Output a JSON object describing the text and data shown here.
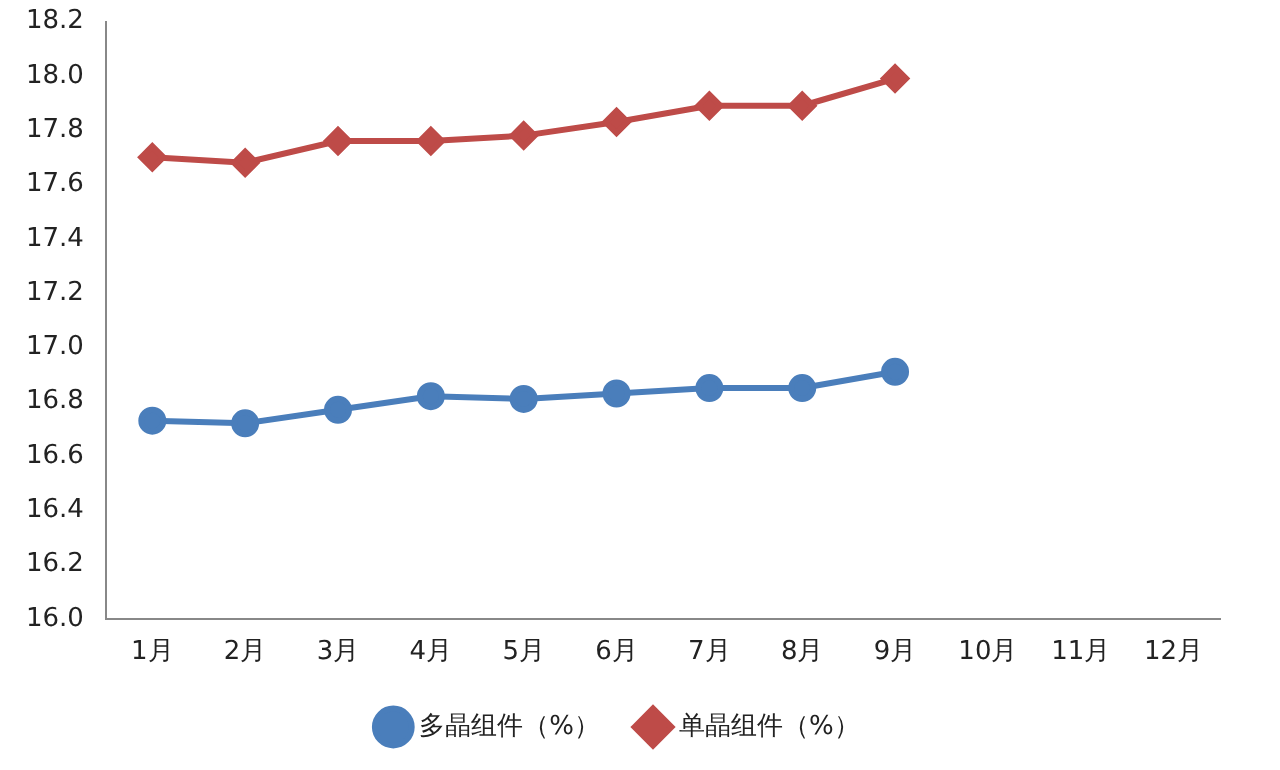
{
  "chart_data": {
    "type": "line",
    "categories": [
      "1月",
      "2月",
      "3月",
      "4月",
      "5月",
      "6月",
      "7月",
      "8月",
      "9月",
      "10月",
      "11月",
      "12月"
    ],
    "series": [
      {
        "name": "多晶组件（%）",
        "color": "#4a7ebb",
        "marker": "circle",
        "values": [
          16.73,
          16.72,
          16.77,
          16.82,
          16.81,
          16.83,
          16.85,
          16.85,
          16.91,
          null,
          null,
          null
        ]
      },
      {
        "name": "单晶组件（%）",
        "color": "#be4b48",
        "marker": "diamond",
        "values": [
          17.7,
          17.68,
          17.76,
          17.76,
          17.78,
          17.83,
          17.89,
          17.89,
          17.99,
          null,
          null,
          null
        ]
      }
    ],
    "ylim": [
      16.0,
      18.2
    ],
    "yticks": [
      {
        "value": 16,
        "label": "16.0"
      },
      16.2,
      16.4,
      16.6,
      16.8,
      {
        "value": 17,
        "label": "17.0"
      },
      17.2,
      17.4,
      17.6,
      17.8,
      {
        "value": 18,
        "label": "18.0"
      },
      18.2
    ],
    "grid": false,
    "legend": "bottom"
  }
}
